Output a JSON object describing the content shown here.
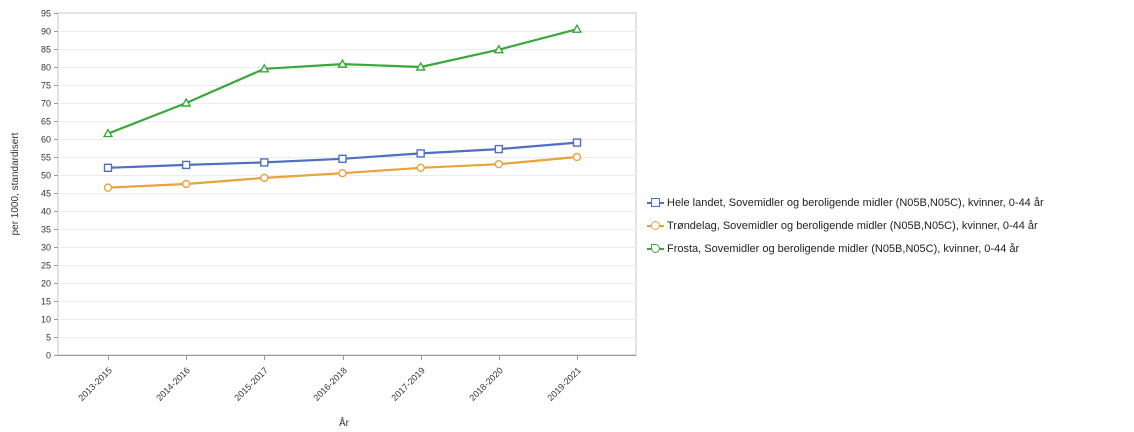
{
  "chart_data": {
    "type": "line",
    "xlabel": "År",
    "ylabel": "per 1000, standardisert",
    "categories": [
      "2013-2015",
      "2014-2016",
      "2015-2017",
      "2016-2018",
      "2017-2019",
      "2018-2020",
      "2019-2021"
    ],
    "ylim": [
      0,
      95
    ],
    "yticks": [
      0,
      5,
      10,
      15,
      20,
      25,
      30,
      35,
      40,
      45,
      50,
      55,
      60,
      65,
      70,
      75,
      80,
      85,
      90,
      95
    ],
    "grid": true,
    "legend_position": "right",
    "series": [
      {
        "name": "Hele landet, Sovemidler og beroligende midler (N05B,N05C), kvinner, 0-44 år",
        "color": "#4f6fbf",
        "marker": "square",
        "values": [
          52.0,
          52.8,
          53.5,
          54.5,
          56.0,
          57.2,
          59.0
        ]
      },
      {
        "name": "Trøndelag, Sovemidler og beroligende midler (N05B,N05C), kvinner, 0-44 år",
        "color": "#e8a33a",
        "marker": "circle",
        "values": [
          46.5,
          47.5,
          49.2,
          50.5,
          52.0,
          53.0,
          55.0
        ]
      },
      {
        "name": "Frosta, Sovemidler og beroligende midler (N05B,N05C), kvinner, 0-44 år",
        "color": "#3aa83a",
        "marker": "triangle",
        "values": [
          61.5,
          70.0,
          79.5,
          80.8,
          80.0,
          84.8,
          90.5
        ]
      }
    ]
  }
}
